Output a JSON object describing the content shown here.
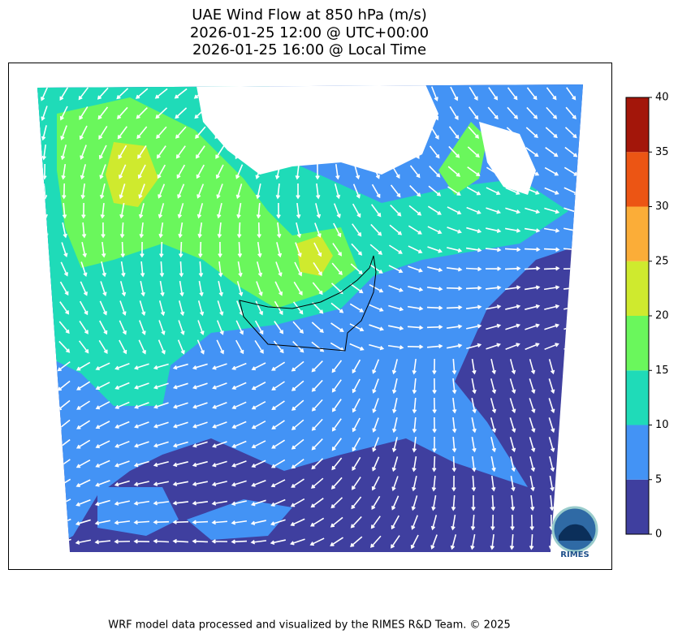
{
  "title": [
    "UAE Wind Flow at 850 hPa (m/s)",
    "2026-01-25 12:00 @ UTC+00:00",
    "2026-01-25 16:00 @ Local Time"
  ],
  "colorbar": {
    "ticks": [
      0,
      5,
      10,
      15,
      20,
      25,
      30,
      35,
      40
    ],
    "colors": [
      "#3f3f9f",
      "#4393f5",
      "#1fdbb8",
      "#6af75c",
      "#cfea2e",
      "#fbad38",
      "#ec5514",
      "#a3160a"
    ]
  },
  "logo": "RIMES",
  "footer": "WRF model data processed and visualized by the RIMES R&D Team. © 2025"
}
